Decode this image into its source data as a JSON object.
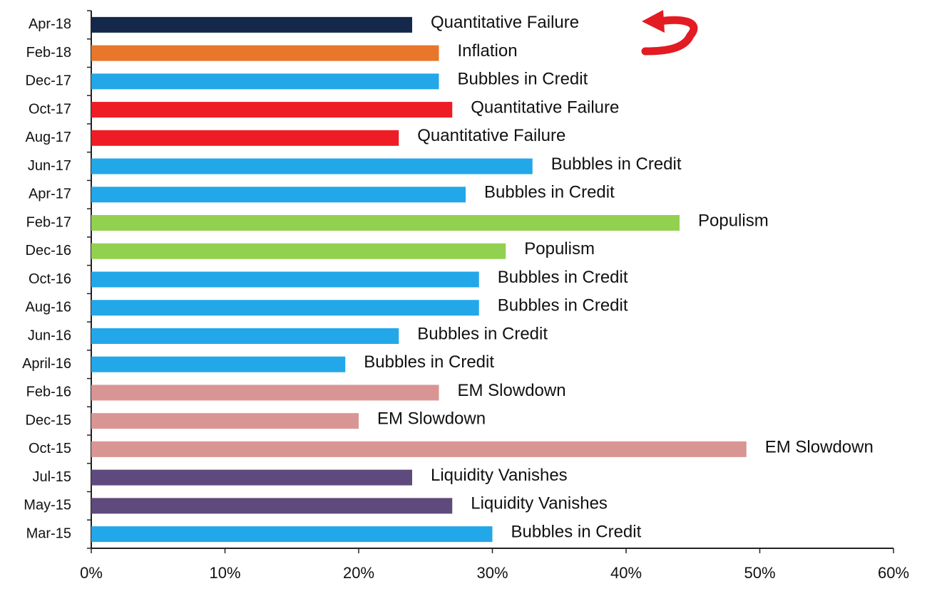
{
  "chart_data": {
    "type": "barh",
    "categories": [
      "Apr-18",
      "Feb-18",
      "Dec-17",
      "Oct-17",
      "Aug-17",
      "Jun-17",
      "Apr-17",
      "Feb-17",
      "Dec-16",
      "Oct-16",
      "Aug-16",
      "Jun-16",
      "April-16",
      "Feb-16",
      "Dec-15",
      "Oct-15",
      "Jul-15",
      "May-15",
      "Mar-15"
    ],
    "values": [
      24,
      26,
      26,
      27,
      23,
      33,
      28,
      44,
      31,
      29,
      29,
      23,
      19,
      26,
      20,
      49,
      24,
      27,
      30
    ],
    "bar_labels": [
      "Quantitative Failure",
      "Inflation",
      "Bubbles in Credit",
      "Quantitative Failure",
      "Quantitative Failure",
      "Bubbles in Credit",
      "Bubbles in Credit",
      "Populism",
      "Populism",
      "Bubbles in Credit",
      "Bubbles in Credit",
      "Bubbles in Credit",
      "Bubbles in Credit",
      "EM Slowdown",
      "EM Slowdown",
      "EM Slowdown",
      "Liquidity Vanishes",
      "Liquidity Vanishes",
      "Bubbles in Credit"
    ],
    "colors": [
      "#14284b",
      "#e8762b",
      "#22a7e8",
      "#ee1c25",
      "#ee1c25",
      "#22a7e8",
      "#22a7e8",
      "#92d050",
      "#92d050",
      "#22a7e8",
      "#22a7e8",
      "#22a7e8",
      "#22a7e8",
      "#d99594",
      "#d99594",
      "#d99594",
      "#5e4a7c",
      "#5e4a7c",
      "#22a7e8"
    ],
    "xlim": [
      0,
      60
    ],
    "xticks": [
      {
        "value": 0,
        "label": "0%"
      },
      {
        "value": 10,
        "label": "10%"
      },
      {
        "value": 20,
        "label": "20%"
      },
      {
        "value": 30,
        "label": "30%"
      },
      {
        "value": 40,
        "label": "40%"
      },
      {
        "value": 50,
        "label": "50%"
      },
      {
        "value": 60,
        "label": "60%"
      }
    ]
  }
}
